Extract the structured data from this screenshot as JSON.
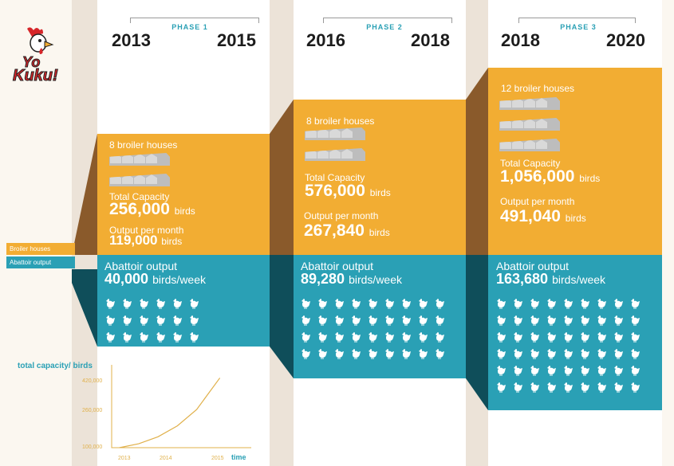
{
  "logo": {
    "text_line1": "Yo",
    "text_line2": "Kuku!"
  },
  "legend": {
    "broiler": "Broiler houses",
    "abattoir": "Abattoir output"
  },
  "phases": [
    {
      "label": "PHASE 1",
      "year_start": "2013",
      "year_end": "2015",
      "houses_text": "8 broiler houses",
      "house_rows": 2,
      "houses_per_row": 4,
      "capacity_label": "Total Capacity",
      "capacity_value": "256,000",
      "capacity_unit": "birds",
      "output_label": "Output per month",
      "output_value": "119,000",
      "output_unit": "birds",
      "abattoir_label": "Abattoir output",
      "abattoir_value": "40,000",
      "abattoir_unit": "birds/week",
      "chick_rows": 3,
      "chick_cols": 6
    },
    {
      "label": "PHASE 2",
      "year_start": "2016",
      "year_end": "2018",
      "houses_text": "8 broiler houses",
      "house_rows": 2,
      "houses_per_row": 4,
      "capacity_label": "Total Capacity",
      "capacity_value": "576,000",
      "capacity_unit": "birds",
      "output_label": "Output per month",
      "output_value": "267,840",
      "output_unit": "birds",
      "abattoir_label": "Abattoir output",
      "abattoir_value": "89,280",
      "abattoir_unit": "birds/week",
      "chick_rows": 4,
      "chick_cols": 9
    },
    {
      "label": "PHASE 3",
      "year_start": "2018",
      "year_end": "2020",
      "houses_text": "12 broiler houses",
      "house_rows": 3,
      "houses_per_row": 4,
      "capacity_label": "Total Capacity",
      "capacity_value": "1,056,000",
      "capacity_unit": "birds",
      "output_label": "Output per month",
      "output_value": "491,040",
      "output_unit": "birds",
      "abattoir_label": "Abattoir output",
      "abattoir_value": "163,680",
      "abattoir_unit": "birds/week",
      "chick_rows": 6,
      "chick_cols": 9
    }
  ],
  "chart_data": {
    "type": "line",
    "title": "total capacity/ birds",
    "xlabel": "time",
    "x_ticks": [
      "2013",
      "2014",
      "2015"
    ],
    "y_ticks": [
      "100,000",
      "260,000",
      "420,000"
    ],
    "xlim": [
      2012.8,
      2016.0
    ],
    "ylim": [
      100000,
      480000
    ],
    "series": [
      {
        "x": [
          2013,
          2013.5,
          2014,
          2014.5,
          2015,
          2015.6
        ],
        "y": [
          100000,
          118000,
          150000,
          200000,
          275000,
          420000
        ]
      }
    ]
  },
  "colors": {
    "orange": "#f2ad33",
    "teal": "#2aa0b5",
    "dark_orange": "#8a5a2b",
    "dark_teal": "#0f4e5a"
  }
}
